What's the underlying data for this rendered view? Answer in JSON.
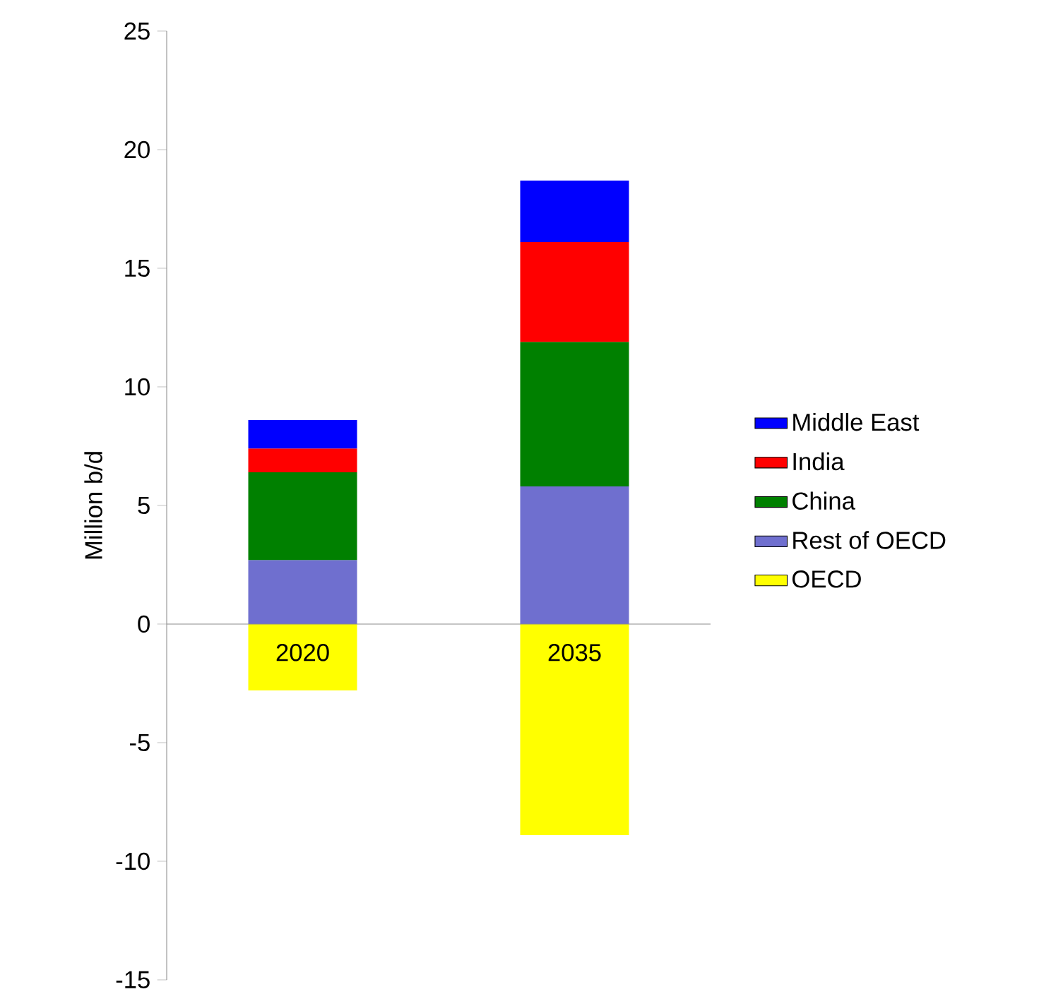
{
  "chart_data": {
    "type": "bar",
    "stacked": true,
    "ylabel": "Million b/d",
    "categories": [
      "2020",
      "2035"
    ],
    "series": [
      {
        "name": "OECD",
        "color": "#ffff00",
        "values": [
          -2.8,
          -8.9
        ]
      },
      {
        "name": "Rest of OECD",
        "color": "#6f6fcf",
        "values": [
          2.7,
          5.8
        ]
      },
      {
        "name": "China",
        "color": "#008000",
        "values": [
          3.7,
          6.1
        ]
      },
      {
        "name": "India",
        "color": "#ff0000",
        "values": [
          1.0,
          4.2
        ]
      },
      {
        "name": "Middle East",
        "color": "#0000ff",
        "values": [
          1.2,
          2.6
        ]
      }
    ],
    "ylim": [
      -15,
      25
    ],
    "yticks": [
      -15,
      -10,
      -5,
      0,
      5,
      10,
      15,
      20,
      25
    ],
    "legend": "right"
  }
}
